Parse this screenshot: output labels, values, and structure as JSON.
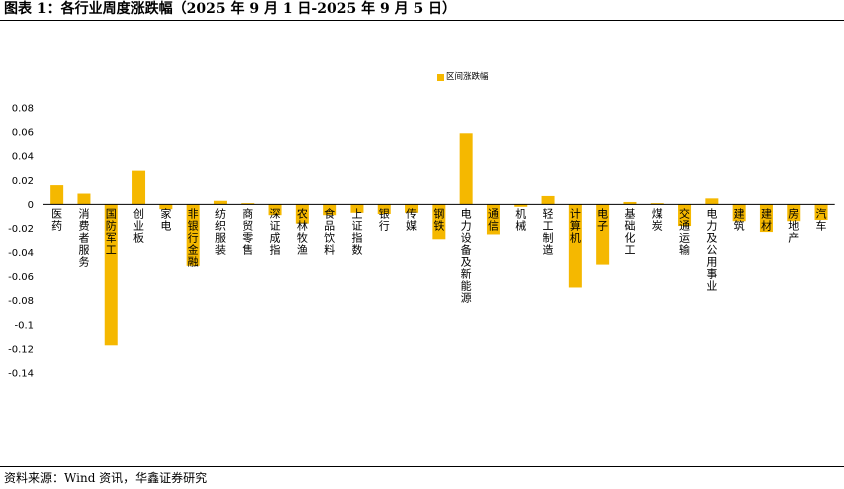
{
  "header": {
    "title": "图表 1：各行业周度涨跌幅（2025 年 9 月 1 日-2025 年 9 月 5 日）"
  },
  "footer": {
    "source": "资料来源：Wind 资讯，华鑫证券研究"
  },
  "colors": {
    "bar": "#F5B800",
    "axis": "#000000"
  },
  "chart_data": {
    "type": "bar",
    "title": "",
    "xlabel": "",
    "ylabel": "",
    "ylim": [
      -0.14,
      0.08
    ],
    "yticks": [
      0.08,
      0.06,
      0.04,
      0.02,
      0,
      -0.02,
      -0.04,
      -0.06,
      -0.08,
      -0.1,
      -0.12,
      -0.14
    ],
    "ytick_labels": [
      "0.08",
      "0.06",
      "0.04",
      "0.02",
      "0",
      "-0.02",
      "-0.04",
      "-0.06",
      "-0.08",
      "-0.1",
      "-0.12",
      "-0.14"
    ],
    "grid": false,
    "legend_position": "top-center",
    "categories": [
      "医药",
      "消费者服务",
      "国防军工",
      "创业板",
      "家电",
      "非银行金融",
      "纺织服装",
      "商贸零售",
      "深证成指",
      "农林牧渔",
      "食品饮料",
      "上证指数",
      "银行",
      "传媒",
      "钢铁",
      "电力设备及新能源",
      "通信",
      "机械",
      "轻工制造",
      "计算机",
      "电子",
      "基础化工",
      "煤炭",
      "交通运输",
      "电力及公用事业",
      "建筑",
      "建材",
      "房地产",
      "汽车"
    ],
    "series": [
      {
        "name": "区间涨跌幅",
        "values": [
          0.016,
          0.009,
          -0.117,
          0.028,
          -0.004,
          -0.051,
          0.003,
          0.001,
          -0.009,
          -0.016,
          -0.009,
          -0.007,
          -0.008,
          -0.007,
          -0.029,
          0.059,
          -0.025,
          -0.002,
          0.007,
          -0.069,
          -0.05,
          0.002,
          0.001,
          -0.018,
          0.005,
          -0.014,
          -0.023,
          -0.014,
          -0.013
        ]
      }
    ]
  }
}
